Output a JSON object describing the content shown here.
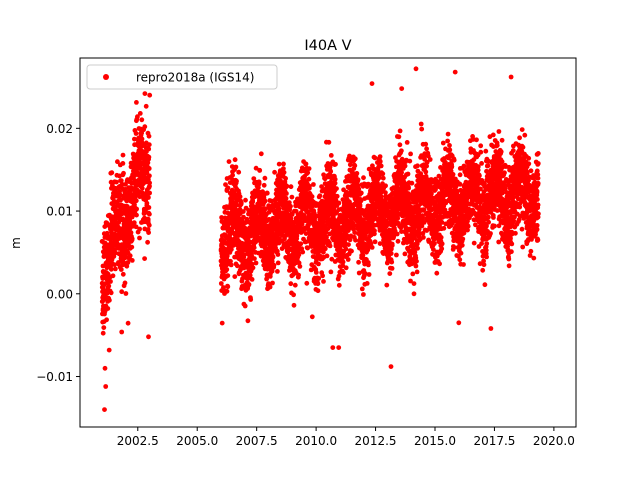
{
  "chart_data": {
    "type": "scatter",
    "title": "I40A V",
    "xlabel": "",
    "ylabel": "m",
    "xlim": [
      2000.07,
      2020.93
    ],
    "ylim": [
      -0.0161,
      0.0285
    ],
    "xticks": [
      2002.5,
      2005.0,
      2007.5,
      2010.0,
      2012.5,
      2015.0,
      2017.5,
      2020.0
    ],
    "xtick_labels": [
      "2002.5",
      "2005.0",
      "2007.5",
      "2010.0",
      "2012.5",
      "2015.0",
      "2017.5",
      "2020.0"
    ],
    "yticks": [
      -0.01,
      0.0,
      0.01,
      0.02
    ],
    "ytick_labels": [
      "−0.01",
      "0.00",
      "0.01",
      "0.02"
    ],
    "grid": false,
    "legend": {
      "position": "top-left"
    },
    "series": [
      {
        "name": "repro2018a (IGS14)",
        "color": "#ff0000",
        "marker": "circle",
        "segments": [
          {
            "start": 2001.0,
            "end": 2003.0,
            "level_start": 0.003,
            "level_end": 0.016,
            "spread": 0.0042
          },
          {
            "start": 2006.0,
            "end": 2019.35,
            "level_start": 0.007,
            "level_end": 0.0125,
            "spread": 0.0035
          }
        ],
        "points": [
          {
            "x": 2001.1,
            "y": -0.014
          },
          {
            "x": 2001.15,
            "y": -0.0112
          },
          {
            "x": 2001.12,
            "y": -0.009
          },
          {
            "x": 2001.3,
            "y": -0.0068
          },
          {
            "x": 2002.95,
            "y": -0.0052
          },
          {
            "x": 2003.0,
            "y": 0.024
          },
          {
            "x": 2002.8,
            "y": 0.0242
          },
          {
            "x": 2010.7,
            "y": -0.0065
          },
          {
            "x": 2010.95,
            "y": -0.0065
          },
          {
            "x": 2013.15,
            "y": -0.0088
          },
          {
            "x": 2016.0,
            "y": -0.0035
          },
          {
            "x": 2017.35,
            "y": -0.0042
          },
          {
            "x": 2014.2,
            "y": 0.0272
          },
          {
            "x": 2015.85,
            "y": 0.0268
          },
          {
            "x": 2018.2,
            "y": 0.0262
          },
          {
            "x": 2012.35,
            "y": 0.0254
          },
          {
            "x": 2013.6,
            "y": 0.0248
          }
        ]
      }
    ]
  }
}
